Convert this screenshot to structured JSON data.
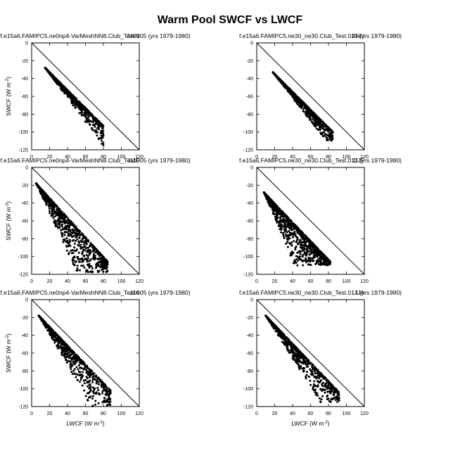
{
  "title": "Warm Pool SWCF vs LWCF",
  "colors": {
    "points": "#000000",
    "frame": "#000000",
    "background": "#ffffff"
  },
  "chart_data": [
    {
      "type": "scatter",
      "panel": "ANN, left",
      "subtitle": "f.e15a6.FAMIPC5.ne0np4-VarMeshNN8.Club_Test.005 (yrs 1979-1980)",
      "season": "ANN",
      "ylabel": "SWCF (W m-2)",
      "xlabel": "",
      "xlim": [
        0,
        120
      ],
      "ylim": [
        -120,
        0
      ],
      "xticks": [
        0,
        20,
        40,
        60,
        80,
        100,
        120
      ],
      "yticks": [
        0,
        -20,
        -40,
        -60,
        -80,
        -100,
        -120
      ],
      "reference_line": "y = -x",
      "cluster": {
        "x_min": 15,
        "x_max": 80,
        "y_top_at_xmin": -28,
        "y_top_slope": -1.0,
        "y_bottom_slope": -1.35,
        "y_min": -115,
        "n": 700
      }
    },
    {
      "type": "scatter",
      "panel": "ANN, right",
      "subtitle": "f.e15a6.FAMIPC5.ne30_ne30.Club_Test.013 (yrs 1979-1980)",
      "season": "ANN",
      "ylabel": "",
      "xlabel": "",
      "xlim": [
        0,
        120
      ],
      "ylim": [
        -120,
        0
      ],
      "xticks": [
        0,
        20,
        40,
        60,
        80,
        100,
        120
      ],
      "yticks": [
        0,
        -20,
        -40,
        -60,
        -80,
        -100,
        -120
      ],
      "reference_line": "y = -x",
      "cluster": {
        "x_min": 18,
        "x_max": 85,
        "y_top_at_xmin": -33,
        "y_top_slope": -1.0,
        "y_bottom_slope": -1.3,
        "y_min": -110,
        "n": 700
      }
    },
    {
      "type": "scatter",
      "panel": "DJF, left",
      "subtitle": "f.e15a6.FAMIPC5.ne0np4-VarMeshNN8.Club_Test.005 (yrs 1979-1980)",
      "season": "DJF",
      "ylabel": "SWCF (W m-2)",
      "xlabel": "",
      "xlim": [
        0,
        120
      ],
      "ylim": [
        -120,
        0
      ],
      "xticks": [
        0,
        20,
        40,
        60,
        80,
        100,
        120
      ],
      "yticks": [
        0,
        -20,
        -40,
        -60,
        -80,
        -100,
        -120
      ],
      "reference_line": "y = -x",
      "cluster": {
        "x_min": 5,
        "x_max": 85,
        "y_top_at_xmin": -18,
        "y_top_slope": -1.1,
        "y_bottom_slope": -2.2,
        "y_min": -118,
        "n": 900
      }
    },
    {
      "type": "scatter",
      "panel": "DJF, right",
      "subtitle": "f.e15a6.FAMIPC5.ne30_ne30.Club_Test.013 (yrs 1979-1980)",
      "season": "DJF",
      "ylabel": "",
      "xlabel": "",
      "xlim": [
        0,
        120
      ],
      "ylim": [
        -120,
        0
      ],
      "xticks": [
        0,
        20,
        40,
        60,
        80,
        100,
        120
      ],
      "yticks": [
        0,
        -20,
        -40,
        -60,
        -80,
        -100,
        -120
      ],
      "reference_line": "y = -x",
      "cluster": {
        "x_min": 8,
        "x_max": 82,
        "y_top_at_xmin": -28,
        "y_top_slope": -1.05,
        "y_bottom_slope": -2.4,
        "y_min": -110,
        "n": 900
      }
    },
    {
      "type": "scatter",
      "panel": "JJA, left",
      "subtitle": "f.e15a6.FAMIPC5.ne0np4-VarMeshNN8.Club_Test.005 (yrs 1979-1980)",
      "season": "JJA",
      "ylabel": "SWCF (W m-2)",
      "xlabel": "LWCF (W m-2)",
      "xlim": [
        0,
        120
      ],
      "ylim": [
        -120,
        0
      ],
      "xticks": [
        0,
        20,
        40,
        60,
        80,
        100,
        120
      ],
      "yticks": [
        0,
        -20,
        -40,
        -60,
        -80,
        -100,
        -120
      ],
      "reference_line": "y = -x",
      "cluster": {
        "x_min": 8,
        "x_max": 88,
        "y_top_at_xmin": -18,
        "y_top_slope": -1.05,
        "y_bottom_slope": -1.75,
        "y_min": -120,
        "n": 750
      }
    },
    {
      "type": "scatter",
      "panel": "JJA, right",
      "subtitle": "f.e15a6.FAMIPC5.ne30_ne30.Club_Test.013 (yrs 1979-1980)",
      "season": "JJA",
      "ylabel": "",
      "xlabel": "LWCF (W m-2)",
      "xlim": [
        0,
        120
      ],
      "ylim": [
        -120,
        0
      ],
      "xticks": [
        0,
        20,
        40,
        60,
        80,
        100,
        120
      ],
      "yticks": [
        0,
        -20,
        -40,
        -60,
        -80,
        -100,
        -120
      ],
      "reference_line": "y = -x",
      "cluster": {
        "x_min": 10,
        "x_max": 92,
        "y_top_at_xmin": -18,
        "y_top_slope": -1.05,
        "y_bottom_slope": -1.6,
        "y_min": -115,
        "n": 750
      }
    }
  ]
}
